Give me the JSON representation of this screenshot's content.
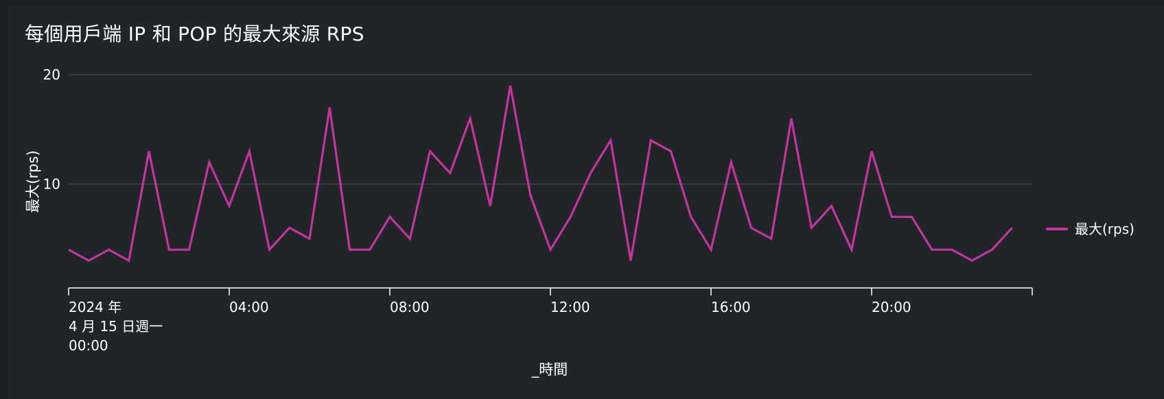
{
  "title": "每個用戶端 IP 和 POP 的最大來源 RPS",
  "colors": {
    "series": "#c2359e",
    "grid": "#3f4347",
    "axis": "#ffffff",
    "background": "#222528"
  },
  "chart_data": {
    "type": "line",
    "title": "每個用戶端 IP 和 POP 的最大來源 RPS",
    "xlabel": "_時間",
    "ylabel": "最大(rps)",
    "x_start_label": [
      "2024 年",
      "4 月 15 日週一",
      "00:00"
    ],
    "x_ticks": [
      {
        "hour": 4,
        "label": "04:00"
      },
      {
        "hour": 8,
        "label": "08:00"
      },
      {
        "hour": 12,
        "label": "12:00"
      },
      {
        "hour": 16,
        "label": "16:00"
      },
      {
        "hour": 20,
        "label": "20:00"
      }
    ],
    "xlim_hours": [
      0,
      24
    ],
    "y_ticks": [
      10,
      20
    ],
    "ylim": [
      0.5,
      20
    ],
    "grid": true,
    "legend_position": "right",
    "series": [
      {
        "name": "最大(rps)",
        "interval_hours": 0.5,
        "values": [
          4,
          3,
          4,
          3,
          13,
          4,
          4,
          12,
          8,
          13,
          4,
          6,
          5,
          17,
          4,
          4,
          7,
          5,
          13,
          11,
          16,
          8,
          19,
          9,
          4,
          7,
          11,
          14,
          3,
          14,
          13,
          7,
          4,
          12,
          6,
          5,
          16,
          6,
          8,
          4,
          13,
          7,
          7,
          4,
          4,
          3,
          4,
          6
        ]
      }
    ]
  }
}
